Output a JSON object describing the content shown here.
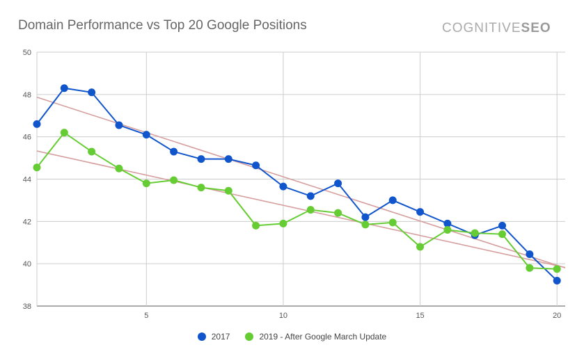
{
  "title": "Domain Performance vs Top 20 Google Positions",
  "logo": {
    "text_main": "COGNITIVE",
    "text_accent": "SEO"
  },
  "chart_data": {
    "type": "line",
    "x": [
      1,
      2,
      3,
      4,
      5,
      6,
      7,
      8,
      9,
      10,
      11,
      12,
      13,
      14,
      15,
      16,
      17,
      18,
      19,
      20
    ],
    "xlim": [
      1,
      20.3
    ],
    "ylim": [
      38,
      50
    ],
    "x_ticks": [
      5,
      10,
      15,
      20
    ],
    "y_ticks": [
      38,
      40,
      42,
      44,
      46,
      48,
      50
    ],
    "grid": true,
    "legend_position": "bottom",
    "series": [
      {
        "name": "2017",
        "color": "#1155cc",
        "values": [
          46.6,
          48.3,
          48.1,
          46.55,
          46.1,
          45.3,
          44.95,
          44.95,
          44.65,
          43.65,
          43.2,
          43.8,
          42.2,
          43.0,
          42.45,
          41.9,
          41.35,
          41.8,
          40.45,
          39.2
        ],
        "trendline": [
          47.87,
          39.93
        ]
      },
      {
        "name": "2019 - After Google March Update",
        "color": "#66cc33",
        "values": [
          44.55,
          46.2,
          45.3,
          44.5,
          43.8,
          43.95,
          43.6,
          43.45,
          41.8,
          41.9,
          42.55,
          42.4,
          41.85,
          41.95,
          40.8,
          41.6,
          41.45,
          41.4,
          39.8,
          39.75
        ],
        "trendline": [
          45.33,
          39.91
        ]
      }
    ],
    "trendline_color": "#d69e9e"
  }
}
